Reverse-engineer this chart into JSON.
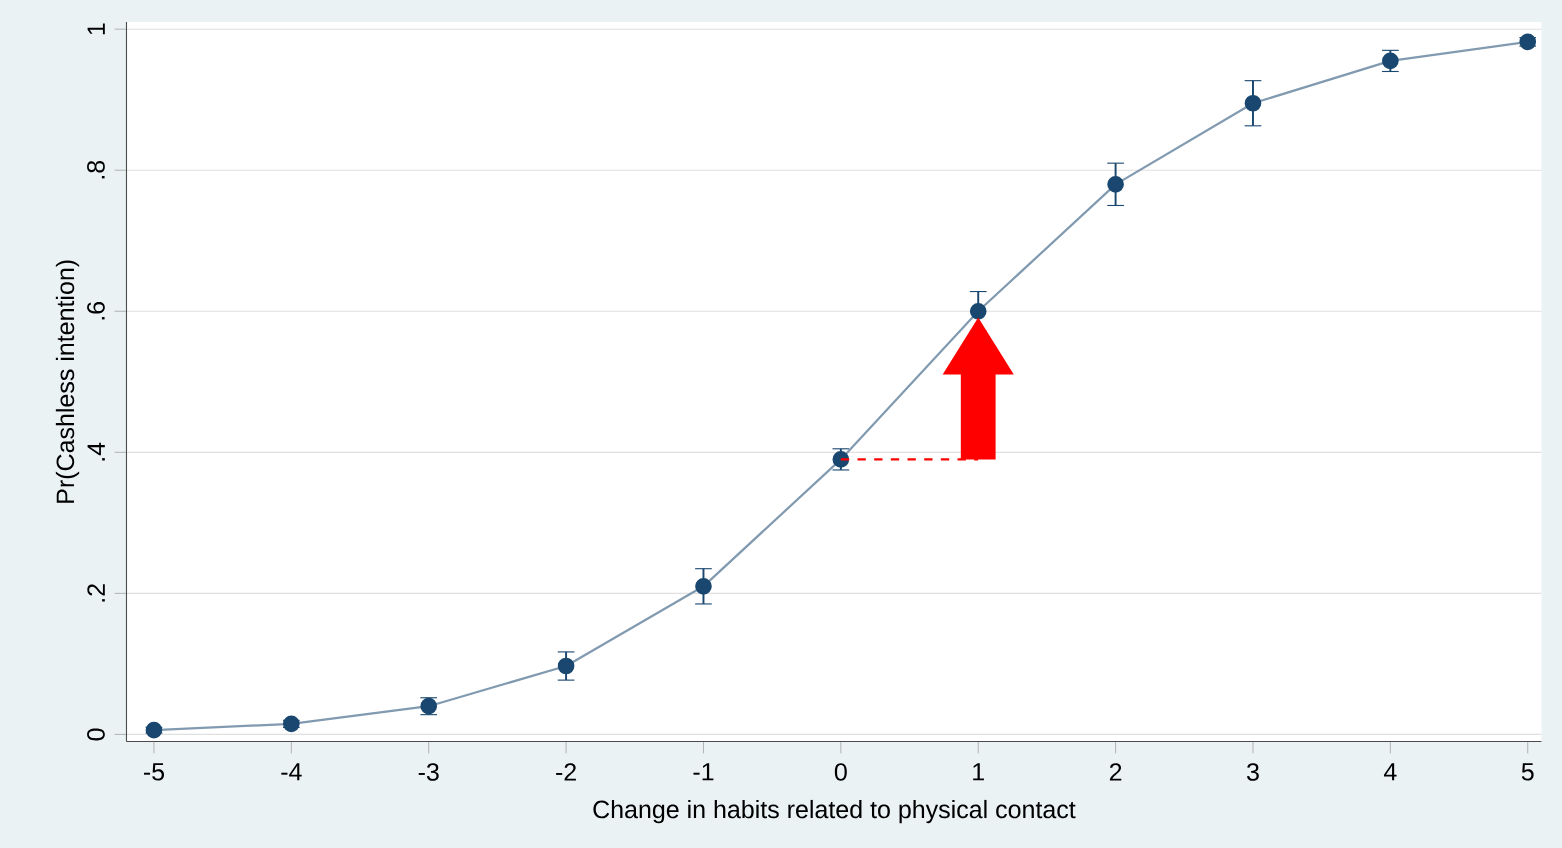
{
  "chart_data": {
    "type": "line",
    "xlabel": "Change in habits related to physical contact",
    "ylabel": "Pr(Cashless intention)",
    "x": [
      -5,
      -4,
      -3,
      -2,
      -1,
      0,
      1,
      2,
      3,
      4,
      5
    ],
    "series": [
      {
        "color": "#1a476f",
        "values": [
          0.006,
          0.015,
          0.04,
          0.097,
          0.21,
          0.39,
          0.6,
          0.78,
          0.895,
          0.955,
          0.982
        ],
        "errors": [
          0.004,
          0.005,
          0.012,
          0.02,
          0.025,
          0.015,
          0.028,
          0.03,
          0.032,
          0.015,
          0.006
        ]
      }
    ],
    "xlim": [
      -5.2,
      5.1
    ],
    "ylim": [
      -0.01,
      1.01
    ],
    "xticks": [
      -5,
      -4,
      -3,
      -2,
      -1,
      0,
      1,
      2,
      3,
      4,
      5
    ],
    "yticks": [
      0,
      {
        "value": 0.2,
        "label": ".2"
      },
      {
        "value": 0.4,
        "label": ".4"
      },
      {
        "value": 0.6,
        "label": ".6"
      },
      {
        "value": 0.8,
        "label": ".8"
      },
      1
    ],
    "grid": "y",
    "marker": "circle",
    "line_style": "solid"
  }
}
